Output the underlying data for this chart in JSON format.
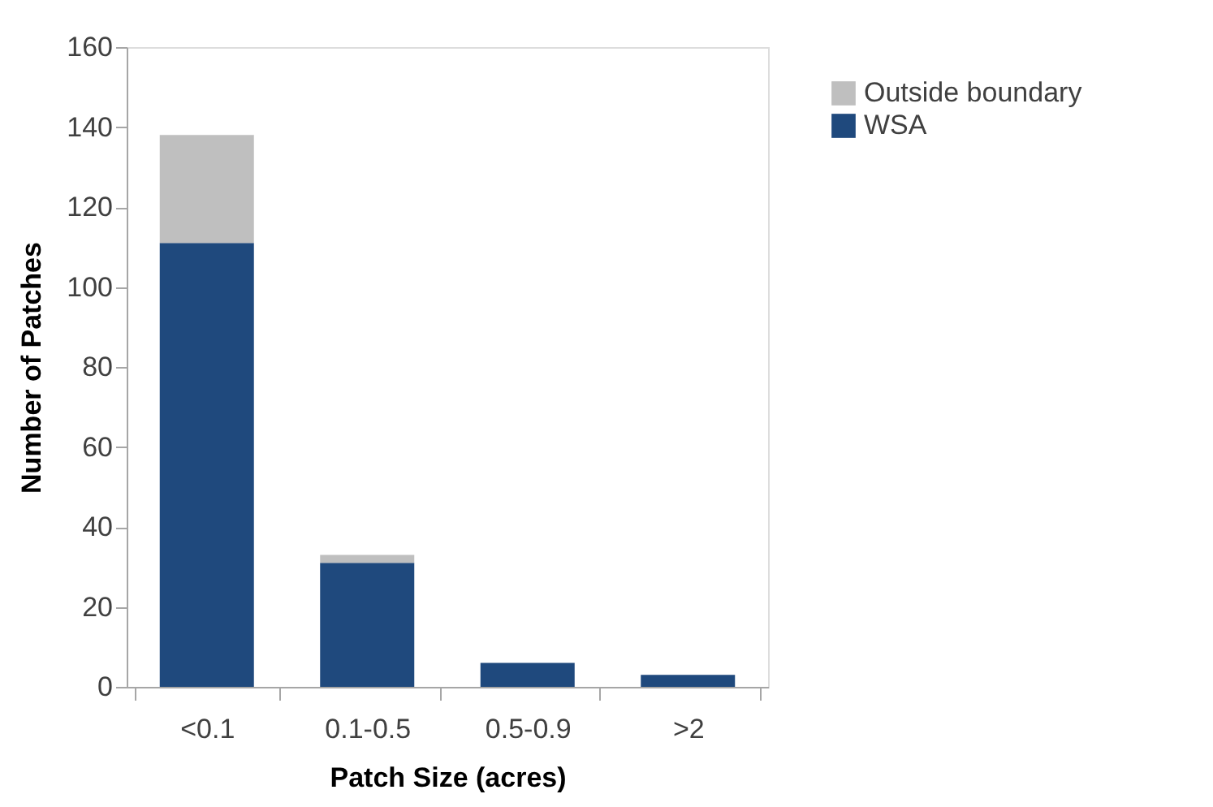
{
  "chart_data": {
    "type": "bar",
    "stacked": true,
    "xlabel": "Patch Size (acres)",
    "ylabel": "Number of Patches",
    "categories": [
      "<0.1",
      "0.1-0.5",
      "0.5-0.9",
      ">2"
    ],
    "series": [
      {
        "name": "WSA",
        "color": "#1f497d",
        "values": [
          111,
          31,
          6,
          3
        ]
      },
      {
        "name": "Outside boundary",
        "color": "#bfbfbf",
        "values": [
          27,
          2,
          0,
          0
        ]
      }
    ],
    "ylim": [
      0,
      160
    ],
    "yticks": [
      0,
      20,
      40,
      60,
      80,
      100,
      120,
      140,
      160
    ],
    "grid": false,
    "legend": "right"
  }
}
